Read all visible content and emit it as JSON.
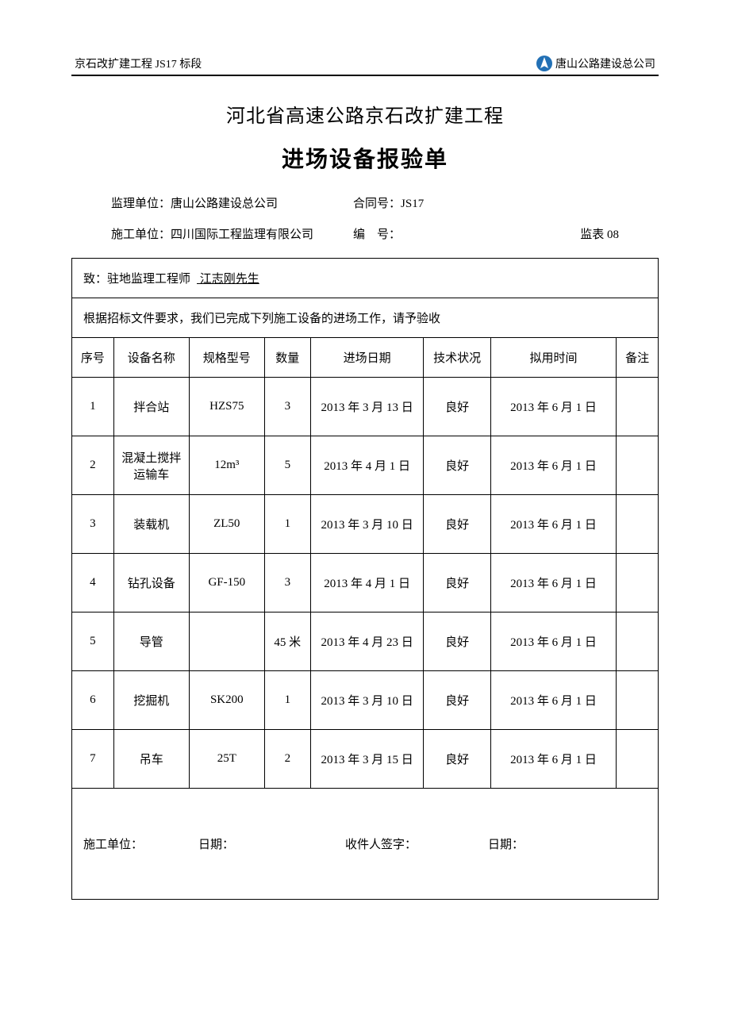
{
  "header": {
    "left": "京石改扩建工程 JS17 标段",
    "right": "唐山公路建设总公司"
  },
  "titles": {
    "title1": "河北省高速公路京石改扩建工程",
    "title2": "进场设备报验单"
  },
  "info": {
    "supervisor_label": "监理单位：",
    "supervisor_value": "唐山公路建设总公司",
    "contract_label": "合同号：",
    "contract_value": "JS17",
    "construction_label": "施工单位：",
    "construction_value": "四川国际工程监理有限公司",
    "serial_label": "编　号：",
    "serial_value": "",
    "form_code": "监表 08"
  },
  "addressed": {
    "prefix": "致：驻地监理工程师",
    "name": "  江志刚先生  "
  },
  "description": "根据招标文件要求，我们已完成下列施工设备的进场工作，请予验收",
  "columns": {
    "seq": "序号",
    "name": "设备名称",
    "spec": "规格型号",
    "qty": "数量",
    "entry_date": "进场日期",
    "status": "技术状况",
    "planned": "拟用时间",
    "note": "备注"
  },
  "rows": [
    {
      "seq": "1",
      "name": "拌合站",
      "spec": "HZS75",
      "qty": "3",
      "entry_date": "2013 年 3 月 13 日",
      "status": "良好",
      "planned": "2013 年 6 月 1 日",
      "note": ""
    },
    {
      "seq": "2",
      "name": "混凝土搅拌运输车",
      "spec": "12m³",
      "qty": "5",
      "entry_date": "2013 年 4 月 1 日",
      "status": "良好",
      "planned": "2013 年 6 月 1 日",
      "note": ""
    },
    {
      "seq": "3",
      "name": "装载机",
      "spec": "ZL50",
      "qty": "1",
      "entry_date": "2013 年 3 月 10 日",
      "status": "良好",
      "planned": "2013 年 6 月 1 日",
      "note": ""
    },
    {
      "seq": "4",
      "name": "钻孔设备",
      "spec": "GF-150",
      "qty": "3",
      "entry_date": "2013 年 4 月 1 日",
      "status": "良好",
      "planned": "2013 年 6 月 1 日",
      "note": ""
    },
    {
      "seq": "5",
      "name": "导管",
      "spec": "",
      "qty": "45 米",
      "entry_date": "2013 年 4 月 23 日",
      "status": "良好",
      "planned": "2013 年 6 月 1 日",
      "note": ""
    },
    {
      "seq": "6",
      "name": "挖掘机",
      "spec": "SK200",
      "qty": "1",
      "entry_date": "2013 年 3 月 10 日",
      "status": "良好",
      "planned": "2013 年 6 月 1 日",
      "note": ""
    },
    {
      "seq": "7",
      "name": "吊车",
      "spec": "25T",
      "qty": "2",
      "entry_date": "2013 年 3 月 15 日",
      "status": "良好",
      "planned": "2013 年 6 月 1 日",
      "note": ""
    }
  ],
  "footer": {
    "construction_unit": "施工单位：",
    "date1": "日期：",
    "receiver": "收件人签字：",
    "date2": "日期："
  }
}
